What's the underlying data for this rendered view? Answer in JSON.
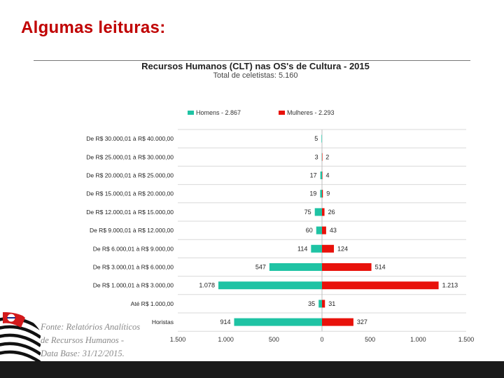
{
  "slide": {
    "heading": "Algumas leituras:",
    "source_lines": [
      "Fonte: Relatórios Analíticos",
      "de Recursos Humanos -",
      "Data Base: 31/12/2015."
    ]
  },
  "colors": {
    "homens": "#1fc3a4",
    "mulheres": "#e8120b",
    "grid": "#d9d9d9",
    "heading": "#c00000"
  },
  "chart_data": {
    "type": "bar",
    "orientation": "horizontal-diverging",
    "title": "Recursos Humanos (CLT) nas OS's de Cultura - 2015",
    "subtitle": "Total de celetistas: 5.160",
    "categories": [
      "De R$ 30.000,01 à R$ 40.000,00",
      "De R$ 25.000,01 à R$ 30.000,00",
      "De R$ 20.000,01 à R$ 25.000,00",
      "De R$ 15.000,01 à R$ 20.000,00",
      "De R$ 12.000,01 à R$ 15.000,00",
      "De R$ 9.000,01 à R$ 12.000,00",
      "De R$ 6.000,01 à R$ 9.000,00",
      "De R$ 3.000,01 à R$ 6.000,00",
      "De R$ 1.000,01 à R$ 3.000,00",
      "Até R$ 1.000,00",
      "Horistas"
    ],
    "series": [
      {
        "name": "Homens - 2.867",
        "values": [
          5,
          3,
          17,
          19,
          75,
          60,
          114,
          547,
          1078,
          35,
          914
        ],
        "labels": [
          "5",
          "3",
          "17",
          "19",
          "75",
          "60",
          "114",
          "547",
          "1.078",
          "35",
          "914"
        ]
      },
      {
        "name": "Mulheres - 2.293",
        "values": [
          null,
          2,
          4,
          9,
          26,
          43,
          124,
          514,
          1213,
          31,
          327
        ],
        "labels": [
          "",
          "2",
          "4",
          "9",
          "26",
          "43",
          "124",
          "514",
          "1.213",
          "31",
          "327"
        ]
      }
    ],
    "xlim": [
      -1500,
      1500
    ],
    "xticks": [
      -1500,
      -1000,
      -500,
      0,
      500,
      1000,
      1500
    ],
    "xtick_labels": [
      "1.500",
      "1.000",
      "500",
      "0",
      "500",
      "1.000",
      "1.500"
    ],
    "legend_position": "top",
    "grid": true
  }
}
